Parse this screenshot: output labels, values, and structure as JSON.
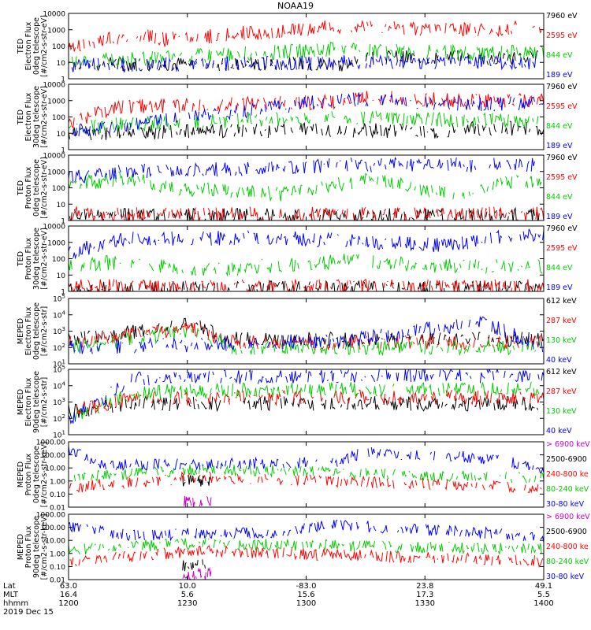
{
  "title": "NOAA19",
  "panels": [
    {
      "ylabel": [
        "TED",
        "Electron Flux",
        "0deg telescope",
        "[#/cm2-s-str-eV]"
      ],
      "ytype": "log",
      "ylim_exp": [
        0,
        4
      ],
      "yticks": [
        "1",
        "10",
        "100",
        "1000",
        "10000"
      ],
      "legend": [
        {
          "text": "7960 eV",
          "color": "#000000"
        },
        {
          "text": "2595 eV",
          "color": "#ff0000"
        },
        {
          "text": "844 eV",
          "color": "#00cc00"
        },
        {
          "text": "189 eV",
          "color": "#0000ff"
        }
      ],
      "profile": {
        "black": [
          [
            0.0,
            0.9
          ],
          [
            0.6,
            0.9
          ],
          [
            0.18,
            1.4
          ],
          [
            0.64,
            1.3
          ],
          [
            0.87,
            1.3
          ]
        ],
        "red": [
          [
            0.0,
            1.8
          ],
          [
            0.14,
            2.8
          ],
          [
            0.2,
            2.4
          ],
          [
            0.56,
            3.2
          ],
          [
            0.84,
            3.0
          ],
          [
            0.98,
            3.1
          ]
        ],
        "green": [
          [
            0.0,
            1.0
          ],
          [
            0.56,
            1.8
          ],
          [
            0.84,
            1.6
          ]
        ],
        "blue": [
          [
            0.0,
            0.8
          ],
          [
            0.57,
            1.0
          ],
          [
            0.85,
            1.0
          ]
        ]
      }
    },
    {
      "ylabel": [
        "TED",
        "Electron Flux",
        "30deg telescope",
        "[#/cm2-s-str-eV]"
      ],
      "ytype": "log",
      "ylim_exp": [
        0,
        4
      ],
      "yticks": [
        "1",
        "10",
        "100",
        "1000",
        "10000"
      ],
      "legend": [
        {
          "text": "7960 eV",
          "color": "#000000"
        },
        {
          "text": "2595 eV",
          "color": "#ff0000"
        },
        {
          "text": "844 eV",
          "color": "#00cc00"
        },
        {
          "text": "189 eV",
          "color": "#0000ff"
        }
      ],
      "profile": {
        "black": [
          [
            0.0,
            1.0
          ],
          [
            0.3,
            1.1
          ],
          [
            0.58,
            1.2
          ],
          [
            0.75,
            1.1
          ],
          [
            0.88,
            1.3
          ]
        ],
        "red": [
          [
            0.0,
            1.6
          ],
          [
            0.1,
            2.6
          ],
          [
            0.55,
            2.9
          ],
          [
            0.63,
            3.2
          ],
          [
            0.86,
            3.0
          ]
        ],
        "green": [
          [
            0.0,
            1.4
          ],
          [
            0.57,
            2.0
          ],
          [
            0.86,
            1.8
          ]
        ],
        "blue": [
          [
            0.0,
            1.1
          ],
          [
            0.58,
            3.1
          ],
          [
            0.86,
            2.8
          ]
        ]
      }
    },
    {
      "ylabel": [
        "TED",
        "Proton Flux",
        "0deg telescope",
        "[#/cm2-s-str-eV]"
      ],
      "ytype": "log",
      "ylim_exp": [
        0,
        4
      ],
      "yticks": [
        "1",
        "10",
        "100",
        "1000",
        "10000"
      ],
      "legend": [
        {
          "text": "7960 eV",
          "color": "#000000"
        },
        {
          "text": "2595 eV",
          "color": "#ff0000"
        },
        {
          "text": "844 eV",
          "color": "#00cc00"
        },
        {
          "text": "189 eV",
          "color": "#0000ff"
        }
      ],
      "profile": {
        "black": [
          [
            0.0,
            0.3
          ],
          [
            0.5,
            0.3
          ]
        ],
        "red": [
          [
            0.0,
            0.4
          ],
          [
            0.5,
            0.4
          ]
        ],
        "green": [
          [
            0.0,
            2.2
          ],
          [
            0.12,
            2.6
          ],
          [
            0.22,
            2.0
          ],
          [
            0.45,
            1.6
          ],
          [
            0.64,
            2.6
          ],
          [
            0.8,
            1.6
          ],
          [
            0.94,
            2.4
          ]
        ],
        "blue": [
          [
            0.0,
            2.6
          ],
          [
            0.12,
            3.0
          ],
          [
            0.44,
            3.2
          ],
          [
            0.58,
            3.4
          ],
          [
            0.93,
            3.4
          ]
        ]
      }
    },
    {
      "ylabel": [
        "TED",
        "Proton Flux",
        "30deg telescope",
        "[#/cm2-s-str-eV]"
      ],
      "ytype": "log",
      "ylim_exp": [
        0,
        4
      ],
      "yticks": [
        "1",
        "10",
        "100",
        "1000",
        "10000"
      ],
      "legend": [
        {
          "text": "7960 eV",
          "color": "#000000"
        },
        {
          "text": "2595 eV",
          "color": "#ff0000"
        },
        {
          "text": "844 eV",
          "color": "#00cc00"
        },
        {
          "text": "189 eV",
          "color": "#0000ff"
        }
      ],
      "profile": {
        "black": [
          [
            0.0,
            0.2
          ],
          [
            0.5,
            0.2
          ]
        ],
        "red": [
          [
            0.0,
            0.3
          ],
          [
            0.5,
            0.3
          ]
        ],
        "green": [
          [
            0.0,
            1.6
          ],
          [
            0.12,
            1.8
          ],
          [
            0.3,
            1.3
          ],
          [
            0.6,
            1.9
          ],
          [
            0.75,
            1.6
          ],
          [
            0.95,
            1.5
          ]
        ],
        "blue": [
          [
            0.0,
            2.4
          ],
          [
            0.12,
            3.2
          ],
          [
            0.44,
            3.3
          ],
          [
            0.8,
            2.8
          ],
          [
            0.93,
            3.4
          ]
        ]
      }
    },
    {
      "ylabel": [
        "MEPED",
        "Electron Flux",
        "0deg telescope",
        "[#/cm2-s-str]"
      ],
      "ytype": "log",
      "ylim_exp": [
        1,
        5
      ],
      "yticks": [
        "10^1",
        "10^2",
        "10^3",
        "10^4",
        "10^5"
      ],
      "legend": [
        {
          "text": "612 keV",
          "color": "#000000"
        },
        {
          "text": "287 keV",
          "color": "#ff0000"
        },
        {
          "text": "130 keV",
          "color": "#00cc00"
        },
        {
          "text": "40 keV",
          "color": "#0000ff"
        }
      ],
      "profile": {
        "black": [
          [
            0.0,
            2.5
          ],
          [
            0.26,
            3.4
          ],
          [
            0.34,
            2.5
          ],
          [
            1.0,
            2.5
          ]
        ],
        "red": [
          [
            0.0,
            2.3
          ],
          [
            0.26,
            3.2
          ],
          [
            0.34,
            2.3
          ],
          [
            1.0,
            2.3
          ]
        ],
        "green": [
          [
            0.0,
            2.0
          ],
          [
            0.26,
            3.0
          ],
          [
            0.34,
            2.0
          ],
          [
            1.0,
            2.0
          ]
        ],
        "blue": [
          [
            0.0,
            2.0
          ],
          [
            0.58,
            2.4
          ],
          [
            0.87,
            3.6
          ],
          [
            1.0,
            2.0
          ]
        ]
      }
    },
    {
      "ylabel": [
        "MEPED",
        "Electron Flux",
        "90deg telescope",
        "[#/cm2-s-str]"
      ],
      "ytype": "log",
      "ylim_exp": [
        1,
        5
      ],
      "yticks": [
        "10^1",
        "10^2",
        "10^3",
        "10^4",
        "10^5"
      ],
      "legend": [
        {
          "text": "612 keV",
          "color": "#000000"
        },
        {
          "text": "287 keV",
          "color": "#ff0000"
        },
        {
          "text": "130 keV",
          "color": "#00cc00"
        },
        {
          "text": "40 keV",
          "color": "#0000ff"
        }
      ],
      "profile": {
        "black": [
          [
            0.0,
            2.4
          ],
          [
            0.14,
            2.9
          ],
          [
            0.56,
            2.9
          ],
          [
            0.86,
            2.9
          ]
        ],
        "red": [
          [
            0.0,
            2.5
          ],
          [
            0.14,
            3.2
          ],
          [
            0.56,
            3.3
          ],
          [
            0.86,
            3.3
          ]
        ],
        "green": [
          [
            0.0,
            2.0
          ],
          [
            0.14,
            3.6
          ],
          [
            0.56,
            3.8
          ],
          [
            0.86,
            3.8
          ]
        ],
        "blue": [
          [
            0.0,
            2.0
          ],
          [
            0.14,
            4.4
          ],
          [
            0.56,
            4.6
          ],
          [
            0.86,
            4.6
          ]
        ]
      }
    },
    {
      "ylabel": [
        "MEPED",
        "Proton Flux",
        "0deg telescope",
        "[#/cm2-s-str-keV]"
      ],
      "ytype": "log",
      "ylim_exp": [
        -2,
        3
      ],
      "yticks": [
        "0.01",
        "0.10",
        "1.00",
        "10.00",
        "100.00",
        "1000.00"
      ],
      "legend": [
        {
          "text": "> 6900 keV",
          "color": "#cc00cc"
        },
        {
          "text": "2500-6900",
          "color": "#000000"
        },
        {
          "text": "240-800 ke",
          "color": "#ff0000"
        },
        {
          "text": "80-240 keV",
          "color": "#00cc00"
        },
        {
          "text": "30-80 keV",
          "color": "#0000ff"
        }
      ],
      "profile": {
        "magenta": [
          [
            0.27,
            -1.6
          ]
        ],
        "black": [
          [
            0.27,
            0.0
          ]
        ],
        "red": [
          [
            0.0,
            -0.5
          ],
          [
            0.27,
            0.3
          ],
          [
            1.0,
            -0.5
          ]
        ],
        "green": [
          [
            0.0,
            0.2
          ],
          [
            0.27,
            0.9
          ],
          [
            1.0,
            0.2
          ]
        ],
        "blue": [
          [
            0.0,
            2.5
          ],
          [
            0.06,
            1.2
          ],
          [
            0.56,
            1.4
          ],
          [
            0.62,
            2.2
          ],
          [
            0.86,
            1.8
          ],
          [
            1.0,
            1.0
          ]
        ]
      }
    },
    {
      "ylabel": [
        "MEPED",
        "Proton Flux",
        "90deg telescope",
        "[#/cm2-s-str-keV]"
      ],
      "ytype": "log",
      "ylim_exp": [
        -2,
        3
      ],
      "yticks": [
        "0.01",
        "0.10",
        "1.00",
        "10.00",
        "100.00",
        "1000.00"
      ],
      "legend": [
        {
          "text": "> 6900 keV",
          "color": "#cc00cc"
        },
        {
          "text": "2500-6900",
          "color": "#000000"
        },
        {
          "text": "240-800 ke",
          "color": "#ff0000"
        },
        {
          "text": "80-240 keV",
          "color": "#00cc00"
        },
        {
          "text": "30-80 keV",
          "color": "#0000ff"
        }
      ],
      "profile": {
        "magenta": [
          [
            0.27,
            -1.6
          ]
        ],
        "black": [
          [
            0.27,
            -0.9
          ]
        ],
        "red": [
          [
            0.0,
            -0.6
          ],
          [
            0.27,
            0.2
          ],
          [
            1.0,
            -0.6
          ]
        ],
        "green": [
          [
            0.0,
            0.3
          ],
          [
            0.27,
            0.8
          ],
          [
            1.0,
            0.3
          ]
        ],
        "blue": [
          [
            0.0,
            2.0
          ],
          [
            0.14,
            1.4
          ],
          [
            0.44,
            1.6
          ],
          [
            0.56,
            2.2
          ],
          [
            0.86,
            1.6
          ],
          [
            1.0,
            1.2
          ]
        ]
      }
    }
  ],
  "xaxis": {
    "rows": [
      {
        "label": "Lat",
        "values": [
          "63.0",
          "10.0",
          "-83.0",
          "23.8",
          "49.1"
        ]
      },
      {
        "label": "MLT",
        "values": [
          "16.4",
          "5.6",
          "15.6",
          "17.3",
          "5.5"
        ]
      },
      {
        "label": "hhmm",
        "values": [
          "1200",
          "1230",
          "1300",
          "1330",
          "1400"
        ]
      }
    ],
    "date": "2019 Dec 15"
  },
  "chart_data": {
    "type": "scatter",
    "title": "NOAA19",
    "x_time_ticks": [
      "1200",
      "1230",
      "1300",
      "1330",
      "1400"
    ],
    "lat_ticks": [
      63.0,
      10.0,
      -83.0,
      23.8,
      49.1
    ],
    "mlt_ticks": [
      16.4,
      5.6,
      15.6,
      17.3,
      5.5
    ],
    "date": "2019 Dec 15",
    "panels": [
      {
        "title": "TED Electron Flux 0deg telescope",
        "yunit": "[#/cm2-s-str-eV]",
        "ylim": [
          1,
          10000
        ],
        "yscale": "log",
        "series": [
          "7960 eV",
          "2595 eV",
          "844 eV",
          "189 eV"
        ]
      },
      {
        "title": "TED Electron Flux 30deg telescope",
        "yunit": "[#/cm2-s-str-eV]",
        "ylim": [
          1,
          10000
        ],
        "yscale": "log",
        "series": [
          "7960 eV",
          "2595 eV",
          "844 eV",
          "189 eV"
        ]
      },
      {
        "title": "TED Proton Flux 0deg telescope",
        "yunit": "[#/cm2-s-str-eV]",
        "ylim": [
          1,
          10000
        ],
        "yscale": "log",
        "series": [
          "7960 eV",
          "2595 eV",
          "844 eV",
          "189 eV"
        ]
      },
      {
        "title": "TED Proton Flux 30deg telescope",
        "yunit": "[#/cm2-s-str-eV]",
        "ylim": [
          1,
          10000
        ],
        "yscale": "log",
        "series": [
          "7960 eV",
          "2595 eV",
          "844 eV",
          "189 eV"
        ]
      },
      {
        "title": "MEPED Electron Flux 0deg telescope",
        "yunit": "[#/cm2-s-str]",
        "ylim": [
          10,
          100000
        ],
        "yscale": "log",
        "series": [
          "612 keV",
          "287 keV",
          "130 keV",
          "40 keV"
        ]
      },
      {
        "title": "MEPED Electron Flux 90deg telescope",
        "yunit": "[#/cm2-s-str]",
        "ylim": [
          10,
          100000
        ],
        "yscale": "log",
        "series": [
          "612 keV",
          "287 keV",
          "130 keV",
          "40 keV"
        ]
      },
      {
        "title": "MEPED Proton Flux 0deg telescope",
        "yunit": "[#/cm2-s-str-keV]",
        "ylim": [
          0.01,
          1000
        ],
        "yscale": "log",
        "series": [
          "> 6900 keV",
          "2500-6900",
          "240-800 ke",
          "80-240 keV",
          "30-80 keV"
        ]
      },
      {
        "title": "MEPED Proton Flux 90deg telescope",
        "yunit": "[#/cm2-s-str-keV]",
        "ylim": [
          0.01,
          1000
        ],
        "yscale": "log",
        "series": [
          "> 6900 keV",
          "2500-6900",
          "240-800 ke",
          "80-240 keV",
          "30-80 keV"
        ]
      }
    ]
  }
}
